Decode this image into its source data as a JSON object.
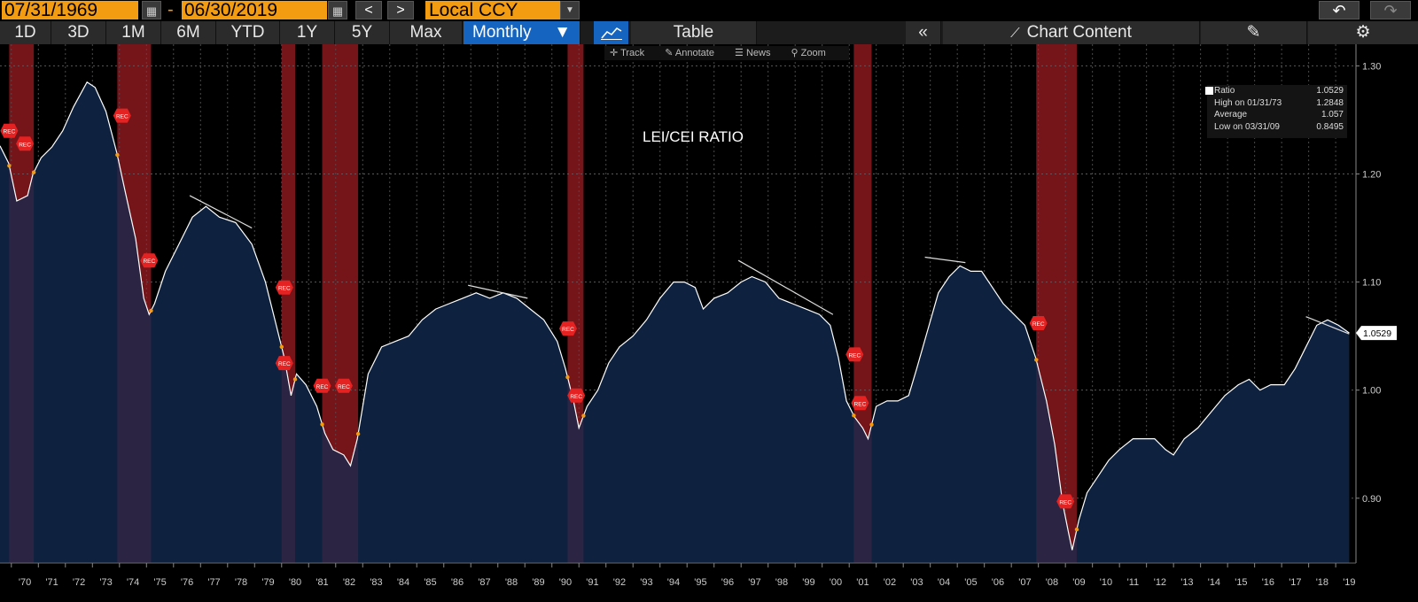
{
  "header": {
    "start_date": "07/31/1969",
    "separator": "-",
    "end_date": "06/30/2019",
    "currency": "Local CCY",
    "back_label": "<",
    "forward_label": ">"
  },
  "toolbar": {
    "ranges": [
      "1D",
      "3D",
      "1M",
      "6M",
      "YTD",
      "1Y",
      "5Y",
      "Max"
    ],
    "frequency": "Monthly",
    "table_label": "Table",
    "collapse_label": "«",
    "chart_content_label": "Chart Content"
  },
  "subtools": {
    "track": "Track",
    "annotate": "Annotate",
    "news": "News",
    "zoom": "Zoom"
  },
  "legend": {
    "ratio_label": "Ratio",
    "ratio_value": "1.0529",
    "high_label": "High on 01/31/73",
    "high_value": "1.2848",
    "avg_label": "Average",
    "avg_value": "1.057",
    "low_label": "Low on 03/31/09",
    "low_value": "0.8495"
  },
  "colors": {
    "accent": "#f39c12",
    "area": "#0e2240",
    "recession": "#7a1010",
    "line": "#ffffff",
    "marker": "#e52222"
  },
  "chart_data": {
    "type": "area",
    "title": "LEI/CEI RATIO",
    "series_name": "Ratio",
    "last_value_label": "1.0529",
    "recession_marker": "REC",
    "ylim": [
      0.84,
      1.32
    ],
    "xlim": [
      1969.58,
      2019.75
    ],
    "y_ticks": [
      0.9,
      1.0,
      1.1,
      1.2,
      1.3
    ],
    "y_tick_labels": [
      "0.90",
      "1.00",
      "1.10",
      "1.20",
      "1.30"
    ],
    "x_ticks": [
      "'70",
      "'71",
      "'72",
      "'73",
      "'74",
      "'75",
      "'76",
      "'77",
      "'78",
      "'79",
      "'80",
      "'81",
      "'82",
      "'83",
      "'84",
      "'85",
      "'86",
      "'87",
      "'88",
      "'89",
      "'90",
      "'91",
      "'92",
      "'93",
      "'94",
      "'95",
      "'96",
      "'97",
      "'98",
      "'99",
      "'00",
      "'01",
      "'02",
      "'03",
      "'04",
      "'05",
      "'06",
      "'07",
      "'08",
      "'09",
      "'10",
      "'11",
      "'12",
      "'13",
      "'14",
      "'15",
      "'16",
      "'17",
      "'18",
      "'19"
    ],
    "recessions": [
      [
        1969.92,
        1970.83
      ],
      [
        1973.92,
        1975.17
      ],
      [
        1980.0,
        1980.5
      ],
      [
        1981.5,
        1982.83
      ],
      [
        1990.58,
        1991.17
      ],
      [
        2001.17,
        2001.83
      ],
      [
        2007.92,
        2009.42
      ]
    ],
    "rec_markers": [
      [
        1969.92,
        1.24
      ],
      [
        1970.5,
        1.228
      ],
      [
        1974.1,
        1.254
      ],
      [
        1975.1,
        1.12
      ],
      [
        1980.1,
        1.095
      ],
      [
        1980.1,
        1.025
      ],
      [
        1981.5,
        1.004
      ],
      [
        1982.3,
        1.004
      ],
      [
        1990.6,
        1.057
      ],
      [
        1990.9,
        0.995
      ],
      [
        2001.2,
        1.033
      ],
      [
        2001.4,
        0.988
      ],
      [
        2008.0,
        1.062
      ],
      [
        2009.0,
        0.897
      ]
    ],
    "trend_lines": [
      [
        [
          1976.6,
          1.18
        ],
        [
          1978.9,
          1.15
        ]
      ],
      [
        [
          1986.9,
          1.097
        ],
        [
          1989.1,
          1.085
        ]
      ],
      [
        [
          1996.9,
          1.12
        ],
        [
          2000.4,
          1.07
        ]
      ],
      [
        [
          2003.8,
          1.123
        ],
        [
          2005.3,
          1.118
        ]
      ],
      [
        [
          2017.9,
          1.068
        ],
        [
          2019.5,
          1.052
        ]
      ]
    ],
    "points": [
      [
        1969.58,
        1.226
      ],
      [
        1969.9,
        1.21
      ],
      [
        1970.2,
        1.175
      ],
      [
        1970.6,
        1.18
      ],
      [
        1970.8,
        1.2
      ],
      [
        1971.1,
        1.215
      ],
      [
        1971.5,
        1.225
      ],
      [
        1971.9,
        1.24
      ],
      [
        1972.3,
        1.262
      ],
      [
        1972.8,
        1.285
      ],
      [
        1973.1,
        1.28
      ],
      [
        1973.5,
        1.258
      ],
      [
        1973.9,
        1.22
      ],
      [
        1974.2,
        1.185
      ],
      [
        1974.6,
        1.14
      ],
      [
        1974.9,
        1.085
      ],
      [
        1975.1,
        1.07
      ],
      [
        1975.3,
        1.08
      ],
      [
        1975.7,
        1.11
      ],
      [
        1976.2,
        1.135
      ],
      [
        1976.7,
        1.16
      ],
      [
        1977.2,
        1.17
      ],
      [
        1977.7,
        1.16
      ],
      [
        1978.3,
        1.155
      ],
      [
        1978.9,
        1.135
      ],
      [
        1979.4,
        1.1
      ],
      [
        1979.8,
        1.06
      ],
      [
        1980.1,
        1.03
      ],
      [
        1980.35,
        0.995
      ],
      [
        1980.55,
        1.015
      ],
      [
        1980.9,
        1.005
      ],
      [
        1981.3,
        0.985
      ],
      [
        1981.6,
        0.96
      ],
      [
        1981.9,
        0.945
      ],
      [
        1982.3,
        0.94
      ],
      [
        1982.55,
        0.93
      ],
      [
        1982.8,
        0.955
      ],
      [
        1983.2,
        1.015
      ],
      [
        1983.7,
        1.04
      ],
      [
        1984.2,
        1.045
      ],
      [
        1984.7,
        1.05
      ],
      [
        1985.2,
        1.065
      ],
      [
        1985.7,
        1.075
      ],
      [
        1986.2,
        1.08
      ],
      [
        1986.7,
        1.085
      ],
      [
        1987.2,
        1.09
      ],
      [
        1987.7,
        1.085
      ],
      [
        1988.2,
        1.09
      ],
      [
        1988.7,
        1.085
      ],
      [
        1989.2,
        1.075
      ],
      [
        1989.7,
        1.065
      ],
      [
        1990.2,
        1.045
      ],
      [
        1990.5,
        1.02
      ],
      [
        1990.8,
        0.99
      ],
      [
        1991.0,
        0.965
      ],
      [
        1991.3,
        0.985
      ],
      [
        1991.7,
        1.0
      ],
      [
        1992.1,
        1.025
      ],
      [
        1992.5,
        1.04
      ],
      [
        1993.0,
        1.05
      ],
      [
        1993.5,
        1.065
      ],
      [
        1994.0,
        1.085
      ],
      [
        1994.5,
        1.1
      ],
      [
        1994.9,
        1.1
      ],
      [
        1995.3,
        1.095
      ],
      [
        1995.6,
        1.075
      ],
      [
        1996.0,
        1.085
      ],
      [
        1996.5,
        1.09
      ],
      [
        1997.0,
        1.1
      ],
      [
        1997.4,
        1.105
      ],
      [
        1997.9,
        1.1
      ],
      [
        1998.4,
        1.085
      ],
      [
        1998.9,
        1.08
      ],
      [
        1999.4,
        1.075
      ],
      [
        1999.9,
        1.07
      ],
      [
        2000.3,
        1.06
      ],
      [
        2000.6,
        1.03
      ],
      [
        2000.9,
        0.99
      ],
      [
        2001.2,
        0.975
      ],
      [
        2001.5,
        0.965
      ],
      [
        2001.7,
        0.955
      ],
      [
        2002.0,
        0.985
      ],
      [
        2002.4,
        0.99
      ],
      [
        2002.8,
        0.99
      ],
      [
        2003.2,
        0.995
      ],
      [
        2003.5,
        1.02
      ],
      [
        2003.9,
        1.055
      ],
      [
        2004.3,
        1.09
      ],
      [
        2004.7,
        1.105
      ],
      [
        2005.1,
        1.115
      ],
      [
        2005.5,
        1.11
      ],
      [
        2005.9,
        1.11
      ],
      [
        2006.3,
        1.095
      ],
      [
        2006.7,
        1.08
      ],
      [
        2007.1,
        1.07
      ],
      [
        2007.5,
        1.06
      ],
      [
        2007.9,
        1.03
      ],
      [
        2008.3,
        0.99
      ],
      [
        2008.6,
        0.95
      ],
      [
        2008.9,
        0.895
      ],
      [
        2009.1,
        0.87
      ],
      [
        2009.25,
        0.852
      ],
      [
        2009.5,
        0.88
      ],
      [
        2009.8,
        0.905
      ],
      [
        2010.2,
        0.92
      ],
      [
        2010.6,
        0.935
      ],
      [
        2011.0,
        0.945
      ],
      [
        2011.5,
        0.955
      ],
      [
        2011.9,
        0.955
      ],
      [
        2012.3,
        0.955
      ],
      [
        2012.7,
        0.945
      ],
      [
        2013.0,
        0.94
      ],
      [
        2013.4,
        0.955
      ],
      [
        2013.9,
        0.965
      ],
      [
        2014.4,
        0.98
      ],
      [
        2014.9,
        0.995
      ],
      [
        2015.4,
        1.005
      ],
      [
        2015.8,
        1.01
      ],
      [
        2016.2,
        1.0
      ],
      [
        2016.6,
        1.005
      ],
      [
        2017.1,
        1.005
      ],
      [
        2017.5,
        1.02
      ],
      [
        2017.9,
        1.04
      ],
      [
        2018.3,
        1.06
      ],
      [
        2018.7,
        1.065
      ],
      [
        2019.1,
        1.06
      ],
      [
        2019.5,
        1.0529
      ]
    ]
  }
}
